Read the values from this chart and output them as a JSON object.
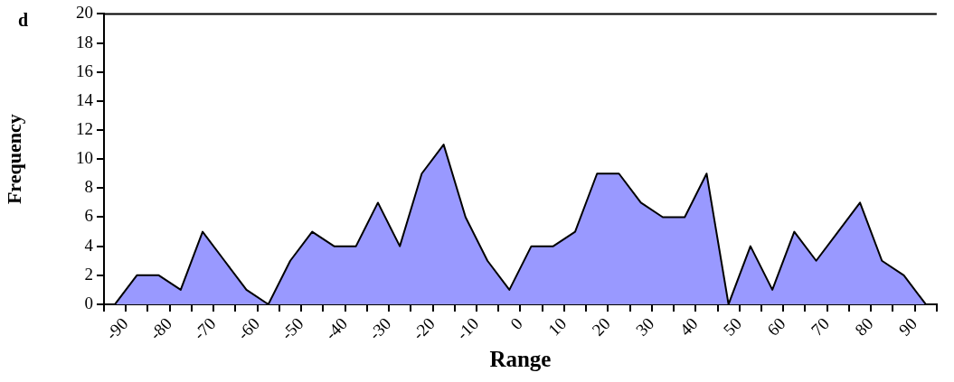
{
  "chart_data": {
    "type": "area",
    "xlabel": "Range",
    "ylabel": "Frequency",
    "annotations": [
      "d"
    ],
    "x": [
      -92.5,
      -87.5,
      -82.5,
      -77.5,
      -72.5,
      -67.5,
      -62.5,
      -57.5,
      -52.5,
      -47.5,
      -42.5,
      -37.5,
      -32.5,
      -27.5,
      -22.5,
      -17.5,
      -12.5,
      -7.5,
      -2.5,
      2.5,
      7.5,
      12.5,
      17.5,
      22.5,
      27.5,
      32.5,
      37.5,
      42.5,
      47.5,
      52.5,
      57.5,
      62.5,
      67.5,
      72.5,
      77.5,
      82.5,
      87.5,
      92.5
    ],
    "series": [
      {
        "color": "#9999ff",
        "values": [
          0,
          2,
          2,
          1,
          5,
          3,
          1,
          0,
          3,
          5,
          4,
          4,
          7,
          4,
          9,
          11,
          6,
          3,
          1,
          4,
          4,
          5,
          9,
          9,
          7,
          6,
          6,
          9,
          0,
          4,
          1,
          5,
          3,
          5,
          7,
          3,
          2,
          0
        ]
      }
    ],
    "xlim": [
      -95,
      95
    ],
    "xticks": [
      {
        "value": -95,
        "label": null
      },
      -90,
      {
        "value": -85,
        "label": null
      },
      -80,
      {
        "value": -75,
        "label": null
      },
      -70,
      {
        "value": -65,
        "label": null
      },
      -60,
      {
        "value": -55,
        "label": null
      },
      -50,
      {
        "value": -45,
        "label": null
      },
      -40,
      {
        "value": -35,
        "label": null
      },
      -30,
      {
        "value": -25,
        "label": null
      },
      -20,
      {
        "value": -15,
        "label": null
      },
      -10,
      {
        "value": -5,
        "label": null
      },
      0,
      {
        "value": 5,
        "label": null
      },
      10,
      {
        "value": 15,
        "label": null
      },
      20,
      {
        "value": 25,
        "label": null
      },
      30,
      {
        "value": 35,
        "label": null
      },
      40,
      {
        "value": 45,
        "label": null
      },
      50,
      {
        "value": 55,
        "label": null
      },
      60,
      {
        "value": 65,
        "label": null
      },
      70,
      {
        "value": 75,
        "label": null
      },
      80,
      {
        "value": 85,
        "label": null
      },
      90,
      {
        "value": 95,
        "label": null
      }
    ],
    "ylim": [
      0,
      20
    ],
    "yticks": [
      0,
      2,
      4,
      6,
      8,
      10,
      12,
      14,
      16,
      18,
      20
    ],
    "grid": false,
    "legend": false,
    "line_style": "solid",
    "marker": "none"
  }
}
